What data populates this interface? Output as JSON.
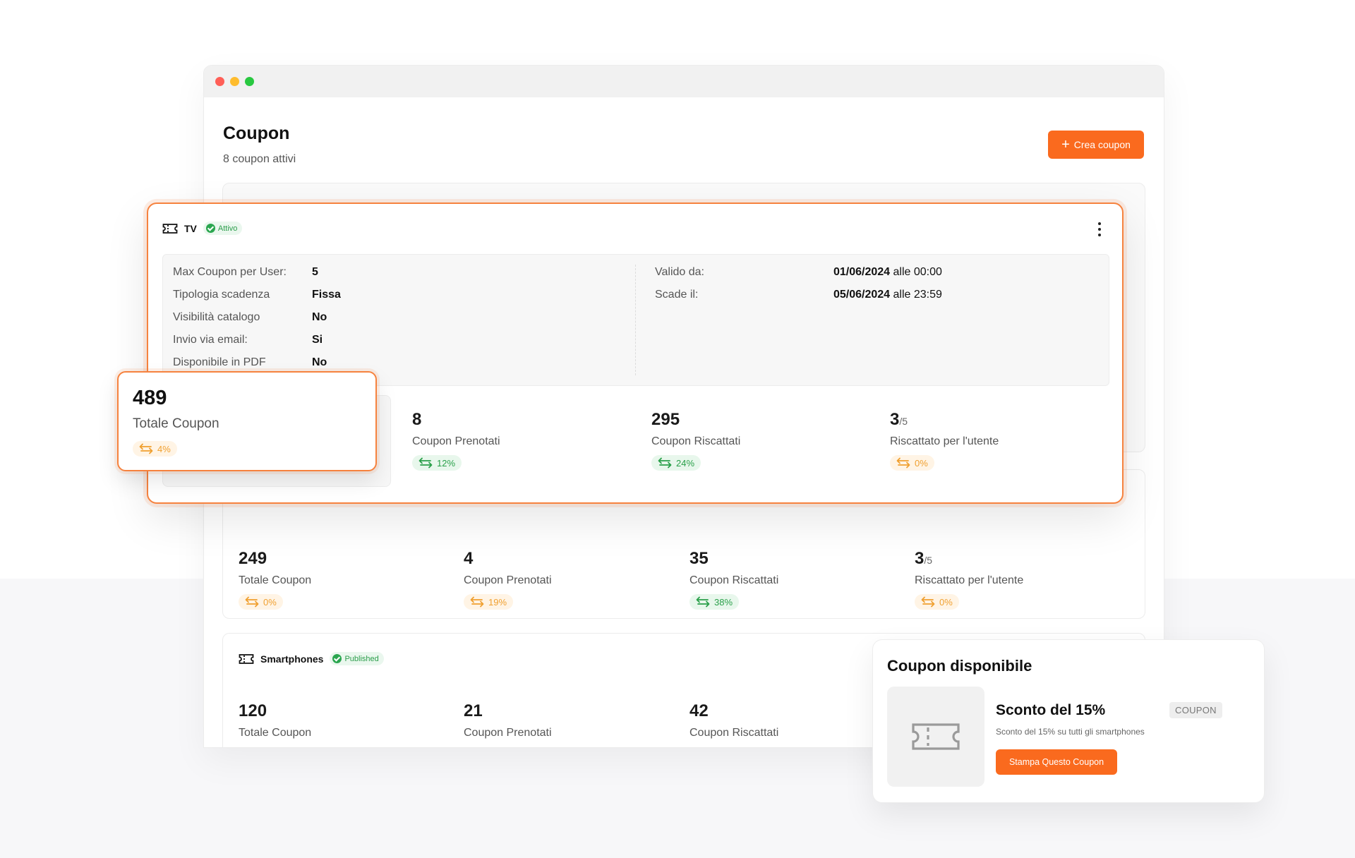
{
  "page": {
    "title": "Coupon",
    "subtitle": "8 coupon attivi",
    "create_button": "Crea coupon"
  },
  "main_card": {
    "name": "TV",
    "status": "Attivo",
    "details_left": [
      {
        "label": "Max Coupon per User:",
        "value": "5"
      },
      {
        "label": "Tipologia scadenza",
        "value": "Fissa"
      },
      {
        "label": "Visibilità catalogo",
        "value": "No"
      },
      {
        "label": "Invio via email:",
        "value": "Si"
      },
      {
        "label": "Disponibile in PDF",
        "value": "No"
      }
    ],
    "details_right": [
      {
        "label": "Valido da:",
        "date": "01/06/2024",
        "time": "alle 00:00"
      },
      {
        "label": "Scade il:",
        "date": "05/06/2024",
        "time": "alle 23:59"
      }
    ],
    "stats": [
      {
        "value": "489",
        "label": "Totale Coupon",
        "delta": "4%",
        "color": "orange"
      },
      {
        "value": "8",
        "label": "Coupon Prenotati",
        "delta": "12%",
        "color": "green"
      },
      {
        "value": "295",
        "label": "Coupon Riscattati",
        "delta": "24%",
        "color": "green"
      },
      {
        "value": "3",
        "suffix": "/5",
        "label": "Riscattato per l'utente",
        "delta": "0%",
        "color": "orange"
      }
    ]
  },
  "second_card": {
    "stats": [
      {
        "value": "249",
        "label": "Totale Coupon",
        "delta": "0%",
        "color": "orange"
      },
      {
        "value": "4",
        "label": "Coupon Prenotati",
        "delta": "19%",
        "color": "orange"
      },
      {
        "value": "35",
        "label": "Coupon Riscattati",
        "delta": "38%",
        "color": "green"
      },
      {
        "value": "3",
        "suffix": "/5",
        "label": "Riscattato per l'utente",
        "delta": "0%",
        "color": "orange"
      }
    ]
  },
  "third_card": {
    "name": "Smartphones",
    "status": "Published",
    "stats": [
      {
        "value": "120",
        "label": "Totale Coupon"
      },
      {
        "value": "21",
        "label": "Coupon Prenotati"
      },
      {
        "value": "42",
        "label": "Coupon Riscattati"
      }
    ]
  },
  "available": {
    "title": "Coupon disponibile",
    "coupon_title": "Sconto del 15%",
    "tag": "COUPON",
    "description": "Sconto del 15% su tutti gli smartphones",
    "button": "Stampa Questo Coupon"
  },
  "colors": {
    "accent": "#fa6a1e",
    "success": "#2aa64f",
    "warning": "#f0a030"
  },
  "icons": [
    "ticket-icon",
    "check-icon",
    "kebab-menu-icon",
    "plus-icon",
    "swap-arrows-icon"
  ]
}
